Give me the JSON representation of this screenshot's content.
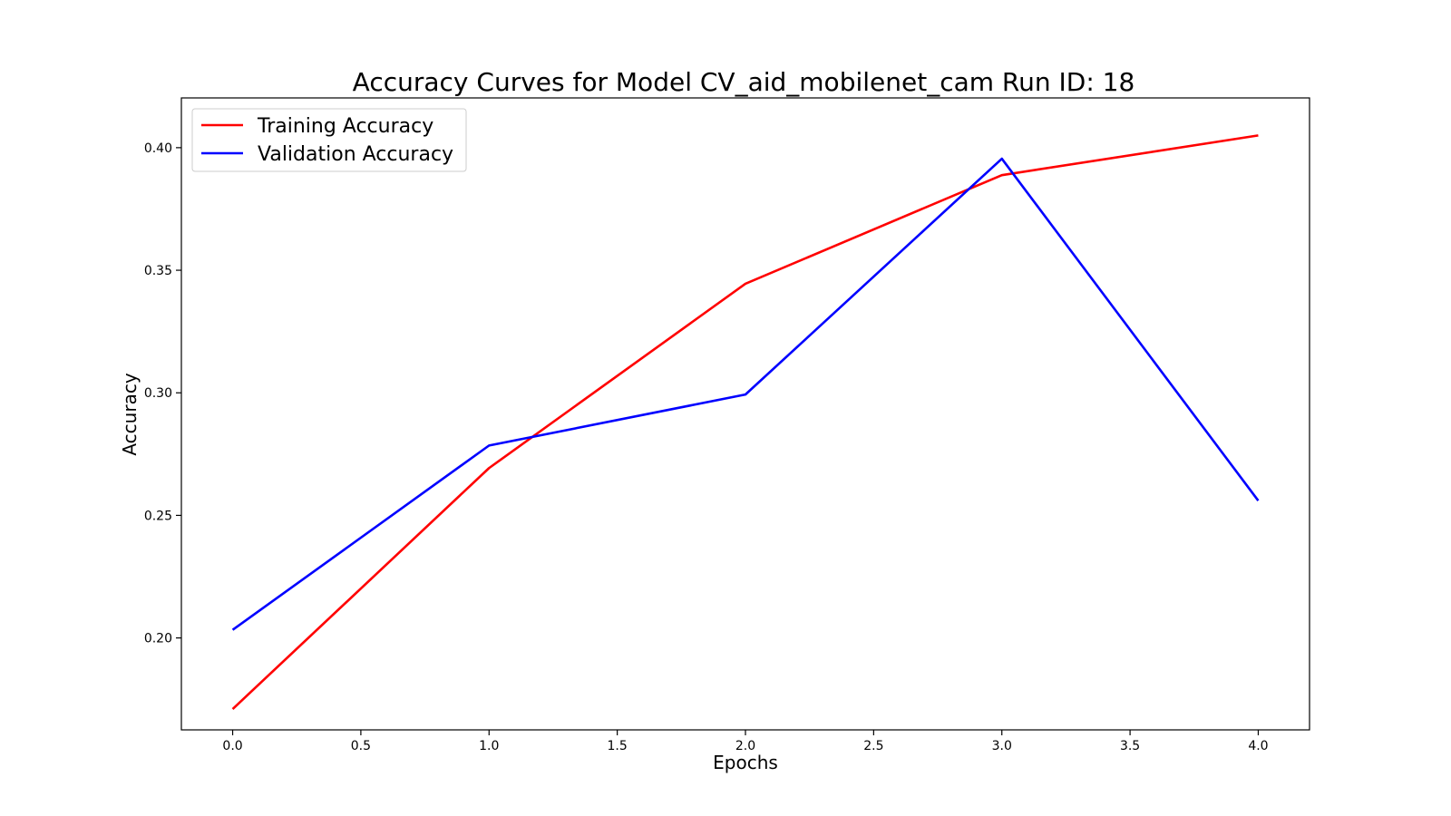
{
  "chart_data": {
    "type": "line",
    "title": "Accuracy Curves for Model CV_aid_mobilenet_cam Run ID: 18",
    "xlabel": "Epochs",
    "ylabel": "Accuracy",
    "x": [
      0,
      1,
      2,
      3,
      4
    ],
    "xlim": [
      -0.2,
      4.2
    ],
    "ylim": [
      0.1625,
      0.4203
    ],
    "xticks": [
      0.0,
      0.5,
      1.0,
      1.5,
      2.0,
      2.5,
      3.0,
      3.5,
      4.0
    ],
    "xtick_labels": [
      "0.0",
      "0.5",
      "1.0",
      "1.5",
      "2.0",
      "2.5",
      "3.0",
      "3.5",
      "4.0"
    ],
    "yticks": [
      0.2,
      0.25,
      0.3,
      0.35,
      0.4
    ],
    "ytick_labels": [
      "0.20",
      "0.25",
      "0.30",
      "0.35",
      "0.40"
    ],
    "grid": false,
    "legend_position": "top-left",
    "series": [
      {
        "name": "Training Accuracy",
        "color": "#ff0000",
        "values": [
          0.171,
          0.2693,
          0.3445,
          0.3888,
          0.405
        ]
      },
      {
        "name": "Validation Accuracy",
        "color": "#0000ff",
        "values": [
          0.2033,
          0.2785,
          0.2993,
          0.3955,
          0.256
        ]
      }
    ]
  }
}
